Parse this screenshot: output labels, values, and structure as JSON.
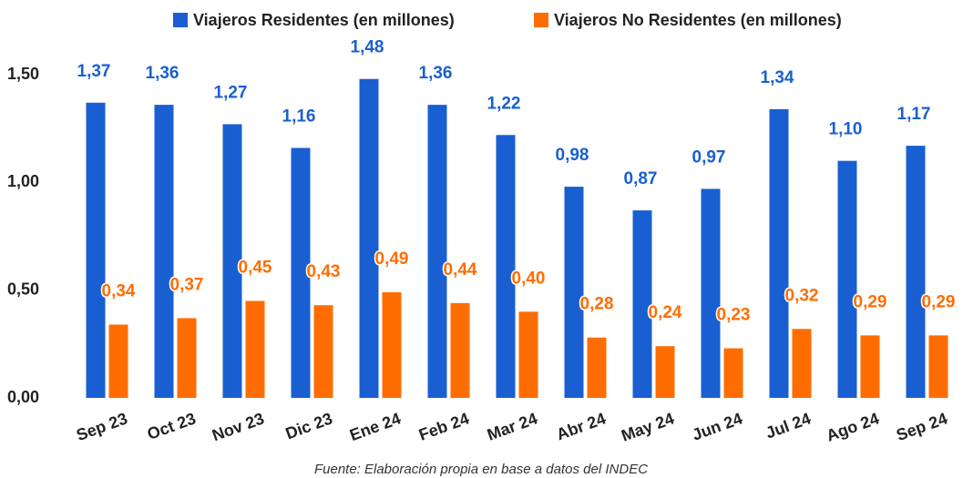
{
  "chart_data": {
    "type": "bar",
    "categories": [
      "Sep 23",
      "Oct 23",
      "Nov 23",
      "Dic 23",
      "Ene 24",
      "Feb 24",
      "Mar 24",
      "Abr 24",
      "May 24",
      "Jun 24",
      "Jul 24",
      "Ago 24",
      "Sep 24"
    ],
    "series": [
      {
        "name": "Viajeros Residentes (en millones)",
        "color": "#1a5fd1",
        "values": [
          1.37,
          1.36,
          1.27,
          1.16,
          1.48,
          1.36,
          1.22,
          0.98,
          0.87,
          0.97,
          1.34,
          1.1,
          1.17
        ],
        "value_labels": [
          "1,37",
          "1,36",
          "1,27",
          "1,16",
          "1,48",
          "1,36",
          "1,22",
          "0,98",
          "0,87",
          "0,97",
          "1,34",
          "1,10",
          "1,17"
        ]
      },
      {
        "name": "Viajeros No Residentes (en millones)",
        "color": "#ff6d01",
        "values": [
          0.34,
          0.37,
          0.45,
          0.43,
          0.49,
          0.44,
          0.4,
          0.28,
          0.24,
          0.23,
          0.32,
          0.29,
          0.29
        ],
        "value_labels": [
          "0,34",
          "0,37",
          "0,45",
          "0,43",
          "0,49",
          "0,44",
          "0,40",
          "0,28",
          "0,24",
          "0,23",
          "0,32",
          "0,29",
          "0,29"
        ]
      }
    ],
    "ylim": [
      0,
      1.5
    ],
    "yticks": [
      {
        "value": 0,
        "label": "0,00"
      },
      {
        "value": 0.5,
        "label": "0,50"
      },
      {
        "value": 1,
        "label": "1,00"
      },
      {
        "value": 1.5,
        "label": "1,50"
      }
    ],
    "grid": false,
    "legend": "top",
    "source": "Fuente: Elaboración propia en base a datos del INDEC"
  }
}
